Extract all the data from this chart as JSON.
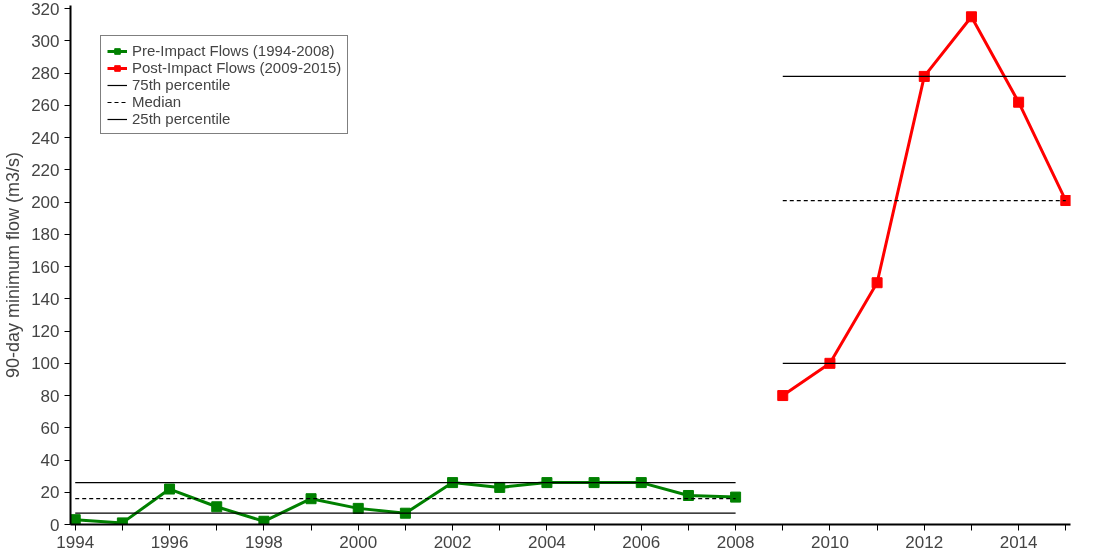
{
  "chart_data": {
    "type": "line",
    "ylabel": "90-day minimum flow (m3/s)",
    "xlim": [
      1993.9,
      2015.1
    ],
    "ylim": [
      0,
      322
    ],
    "xticks": [
      1994,
      {
        "value": 1995,
        "label": null
      },
      1996,
      {
        "value": 1997,
        "label": null
      },
      1998,
      {
        "value": 1999,
        "label": null
      },
      2000,
      {
        "value": 2001,
        "label": null
      },
      2002,
      {
        "value": 2003,
        "label": null
      },
      2004,
      {
        "value": 2005,
        "label": null
      },
      2006,
      {
        "value": 2007,
        "label": null
      },
      2008,
      {
        "value": 2009,
        "label": null
      },
      2010,
      {
        "value": 2011,
        "label": null
      },
      2012,
      {
        "value": 2013,
        "label": null
      },
      2014,
      {
        "value": 2015,
        "label": null
      }
    ],
    "yticks": [
      0,
      20,
      40,
      60,
      80,
      100,
      120,
      140,
      160,
      180,
      200,
      220,
      240,
      260,
      280,
      300,
      320
    ],
    "grid": false,
    "legend": "top left",
    "marker": "square",
    "series": [
      {
        "name": "Pre-Impact Flows (1994-2008)",
        "color": "#008000",
        "x": [
          1994,
          1995,
          1996,
          1997,
          1998,
          1999,
          2000,
          2001,
          2002,
          2003,
          2004,
          2005,
          2006,
          2007,
          2008
        ],
        "values": [
          3,
          1,
          22,
          11,
          2,
          16,
          10,
          7,
          26,
          23,
          26,
          26,
          26,
          18,
          17
        ]
      },
      {
        "name": "Post-Impact Flows (2009-2015)",
        "color": "#ff0000",
        "x": [
          2009,
          2010,
          2011,
          2012,
          2013,
          2014,
          2015
        ],
        "values": [
          80,
          100,
          150,
          278,
          315,
          262,
          201
        ]
      },
      {
        "name": "75th percentile",
        "color": "#000000",
        "marker": "none",
        "line_style": "solid",
        "x": [
          1994,
          2008
        ],
        "values": [
          26,
          26
        ]
      },
      {
        "name": "Median",
        "color": "#000000",
        "marker": "none",
        "line_style": "dashed",
        "x": [
          1994,
          2008
        ],
        "values": [
          16,
          16
        ]
      },
      {
        "name": "25th percentile",
        "color": "#000000",
        "marker": "none",
        "line_style": "solid",
        "x": [
          1994,
          2008
        ],
        "values": [
          7,
          7
        ]
      },
      {
        "color": "#000000",
        "marker": "none",
        "line_style": "solid",
        "x": [
          2009,
          2015
        ],
        "values": [
          278,
          278
        ]
      },
      {
        "color": "#000000",
        "marker": "none",
        "line_style": "dashed",
        "x": [
          2009,
          2015
        ],
        "values": [
          201,
          201
        ]
      },
      {
        "color": "#000000",
        "marker": "none",
        "line_style": "solid",
        "x": [
          2009,
          2015
        ],
        "values": [
          100,
          100
        ]
      }
    ]
  }
}
